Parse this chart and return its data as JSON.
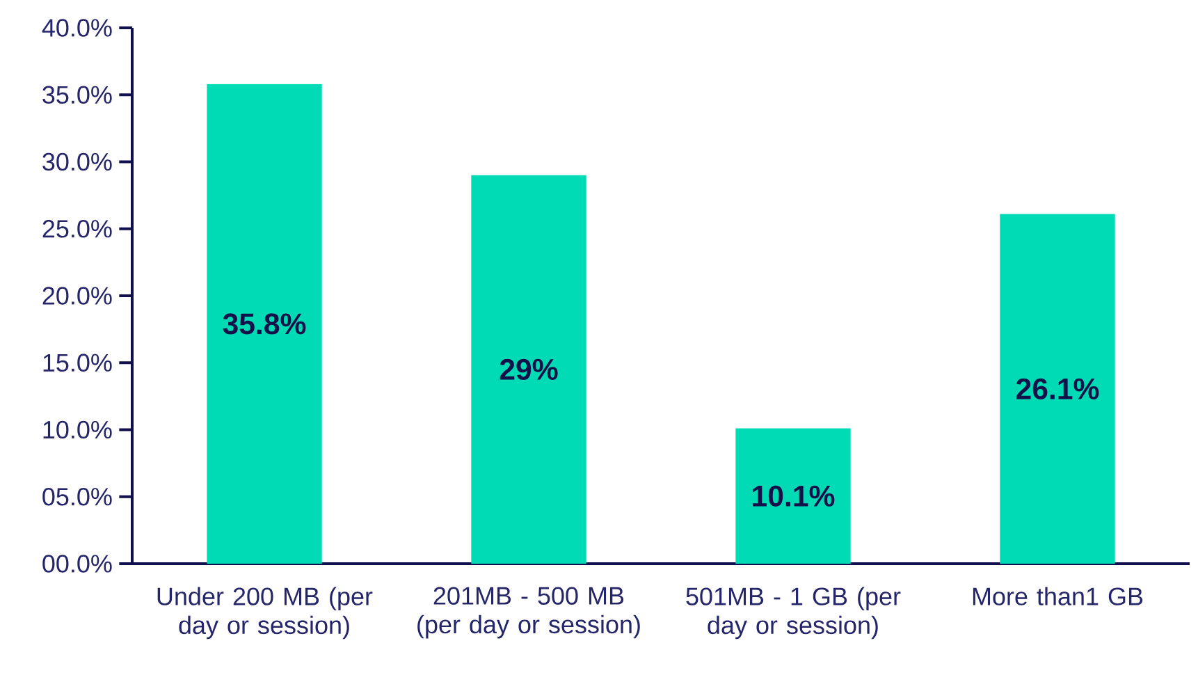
{
  "chart_data": {
    "type": "bar",
    "categories": [
      "Under 200 MB (per day or session)",
      "201MB - 500 MB (per day or session)",
      "501MB - 1 GB (per day or session)",
      "More than1 GB"
    ],
    "values": [
      35.8,
      29,
      10.1,
      26.1
    ],
    "value_labels": [
      "35.8%",
      "29%",
      "10.1%",
      "26.1%"
    ],
    "color": "#00dbb5",
    "ylim": [
      0,
      40
    ],
    "yticks": [
      {
        "value": 0,
        "label": "00.0%"
      },
      {
        "value": 5,
        "label": "05.0%"
      },
      {
        "value": 10,
        "label": "10.0%"
      },
      {
        "value": 15,
        "label": "15.0%"
      },
      {
        "value": 20,
        "label": "20.0%"
      },
      {
        "value": 25,
        "label": "25.0%"
      },
      {
        "value": 30,
        "label": "30.0%"
      },
      {
        "value": 35,
        "label": "35.0%"
      },
      {
        "value": 40,
        "label": "40.0%"
      }
    ],
    "grid": false
  }
}
